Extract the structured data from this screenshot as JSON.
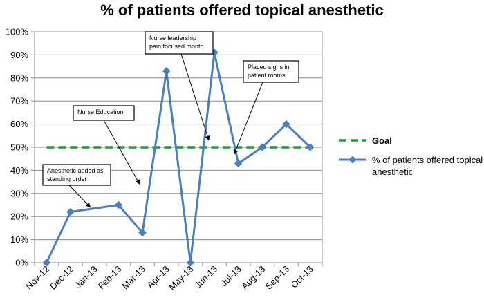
{
  "chart_data": {
    "type": "line",
    "title": "% of patients offered topical anesthetic",
    "xlabel": "",
    "ylabel": "",
    "ylim": [
      0,
      1
    ],
    "yticks": [
      "0%",
      "10%",
      "20%",
      "30%",
      "40%",
      "50%",
      "60%",
      "70%",
      "80%",
      "90%",
      "100%"
    ],
    "categories": [
      "Nov-12",
      "Dec-12",
      "Jan-13",
      "Feb-13",
      "Mar-13",
      "Apr-13",
      "May-13",
      "Jun-13",
      "Jul-13",
      "Aug-13",
      "Sep-13",
      "Oct-13"
    ],
    "series": [
      {
        "name": "Goal",
        "style": "dashed",
        "color": "#1a9a3a",
        "values": [
          0.5,
          0.5,
          0.5,
          0.5,
          0.5,
          0.5,
          0.5,
          0.5,
          0.5,
          0.5,
          0.5,
          0.5
        ]
      },
      {
        "name": "% of patients offered topical anesthetic",
        "style": "line-marker",
        "color": "#4a7ebf",
        "values": [
          0.0,
          0.22,
          null,
          0.25,
          0.13,
          0.83,
          0.0,
          0.91,
          0.43,
          0.5,
          0.6,
          0.5
        ]
      }
    ],
    "legend": [
      {
        "label": "Goal"
      },
      {
        "label_lines": [
          "% of patients offered topical",
          "anesthetic"
        ]
      }
    ],
    "annotations": [
      {
        "lines": [
          "Anesthetic added as",
          "standing order"
        ],
        "target_category": "Jan-13",
        "target_value": 0.24
      },
      {
        "lines": [
          "Nurse Education"
        ],
        "target_category": "Mar-13",
        "target_value": 0.34
      },
      {
        "lines": [
          "Nurse leadership",
          "pain focused month"
        ],
        "target_category": "Jun-13",
        "target_value": 0.53
      },
      {
        "lines": [
          "Placed signs in",
          "patient rooms"
        ],
        "target_category": "Jul-13",
        "target_value": 0.47
      }
    ],
    "grid": "horizontal",
    "legend_position": "right"
  }
}
